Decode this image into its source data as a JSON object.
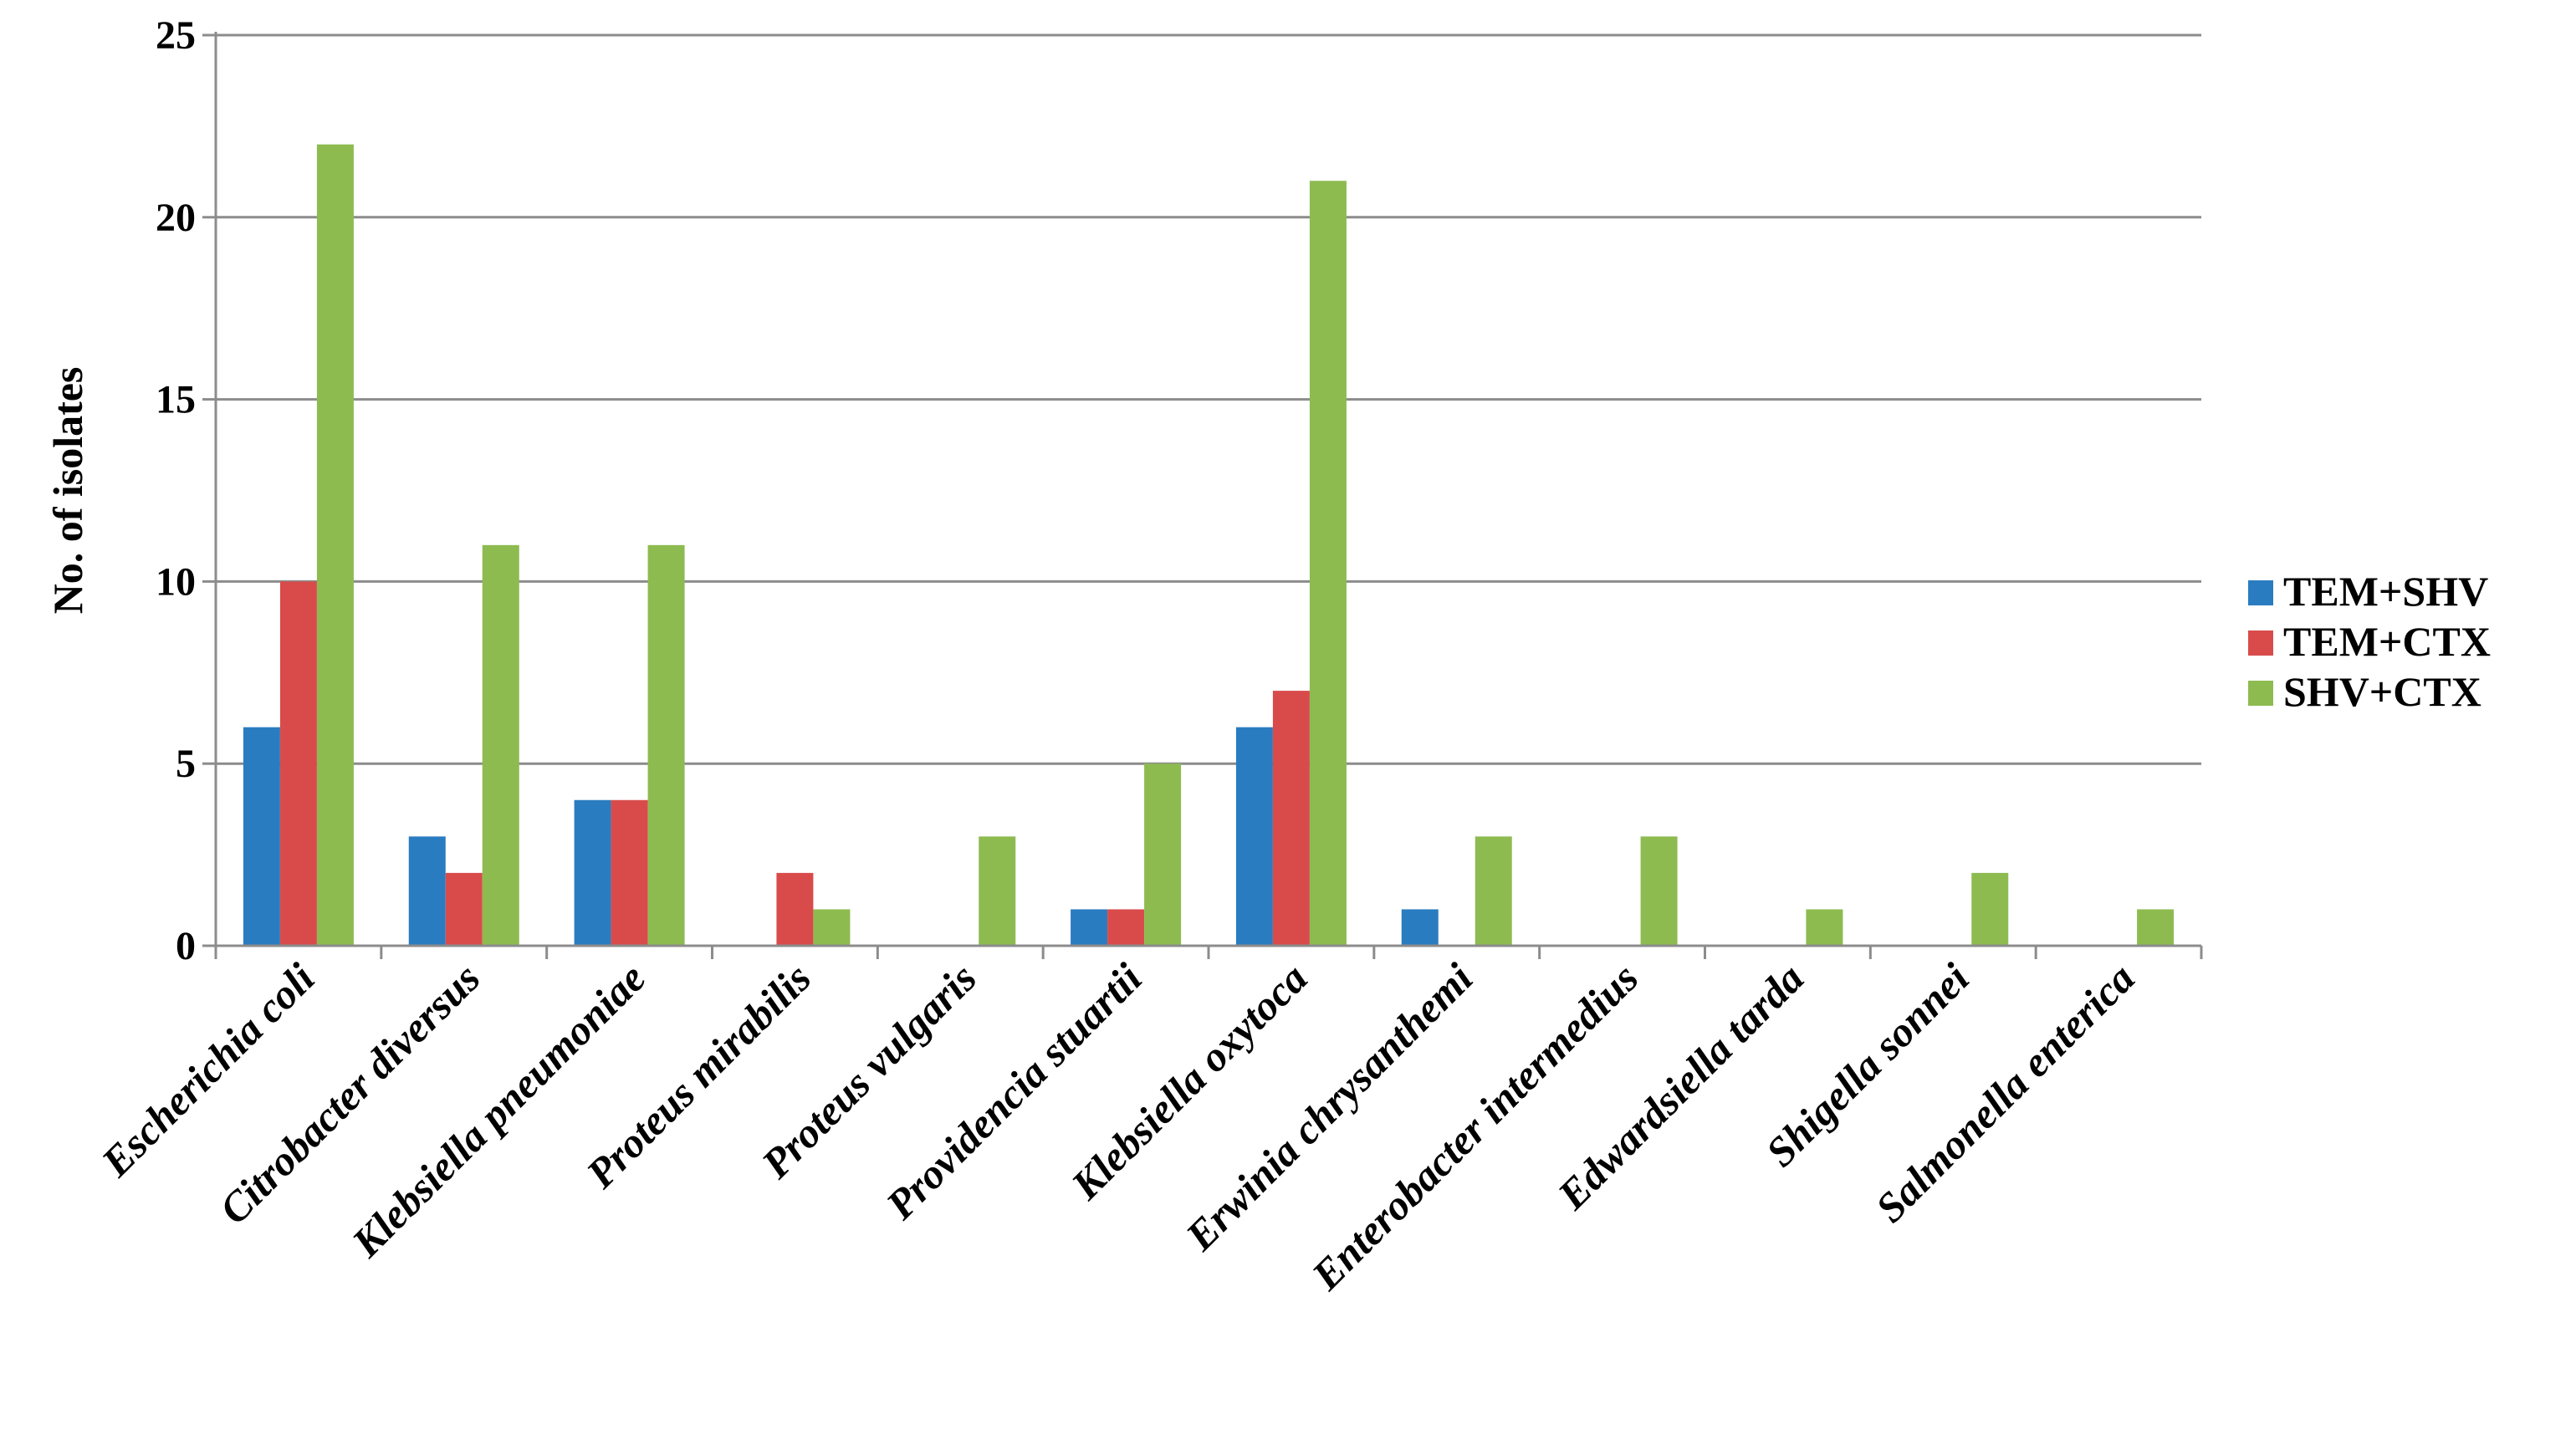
{
  "chart_data": {
    "type": "bar",
    "title": "",
    "xlabel": "",
    "ylabel": "No. of isolates",
    "ylim": [
      0,
      25
    ],
    "yticks": [
      "0",
      "5",
      "10",
      "15",
      "20",
      "25"
    ],
    "grid": true,
    "legend_position": "right",
    "categories": [
      "Escherichia coli",
      "Citrobacter diversus",
      "Klebsiella pneumoniae",
      "Proteus mirabilis",
      "Proteus vulgaris",
      "Providencia stuartii",
      "Klebsiella oxytoca",
      "Erwinia chrysanthemi",
      "Enterobacter intermedius",
      "Edwardsiella tarda",
      "Shigella sonnei",
      "Salmonella enterica"
    ],
    "series": [
      {
        "name": "TEM+SHV",
        "color": "#2a7cc0",
        "values": [
          6,
          3,
          4,
          0,
          0,
          1,
          6,
          1,
          0,
          0,
          0,
          0
        ]
      },
      {
        "name": "TEM+CTX",
        "color": "#d94b4b",
        "values": [
          10,
          2,
          4,
          2,
          0,
          1,
          7,
          0,
          0,
          0,
          0,
          0
        ]
      },
      {
        "name": "SHV+CTX",
        "color": "#8dbb50",
        "values": [
          22,
          11,
          11,
          1,
          3,
          5,
          21,
          3,
          3,
          1,
          2,
          1
        ]
      }
    ]
  }
}
